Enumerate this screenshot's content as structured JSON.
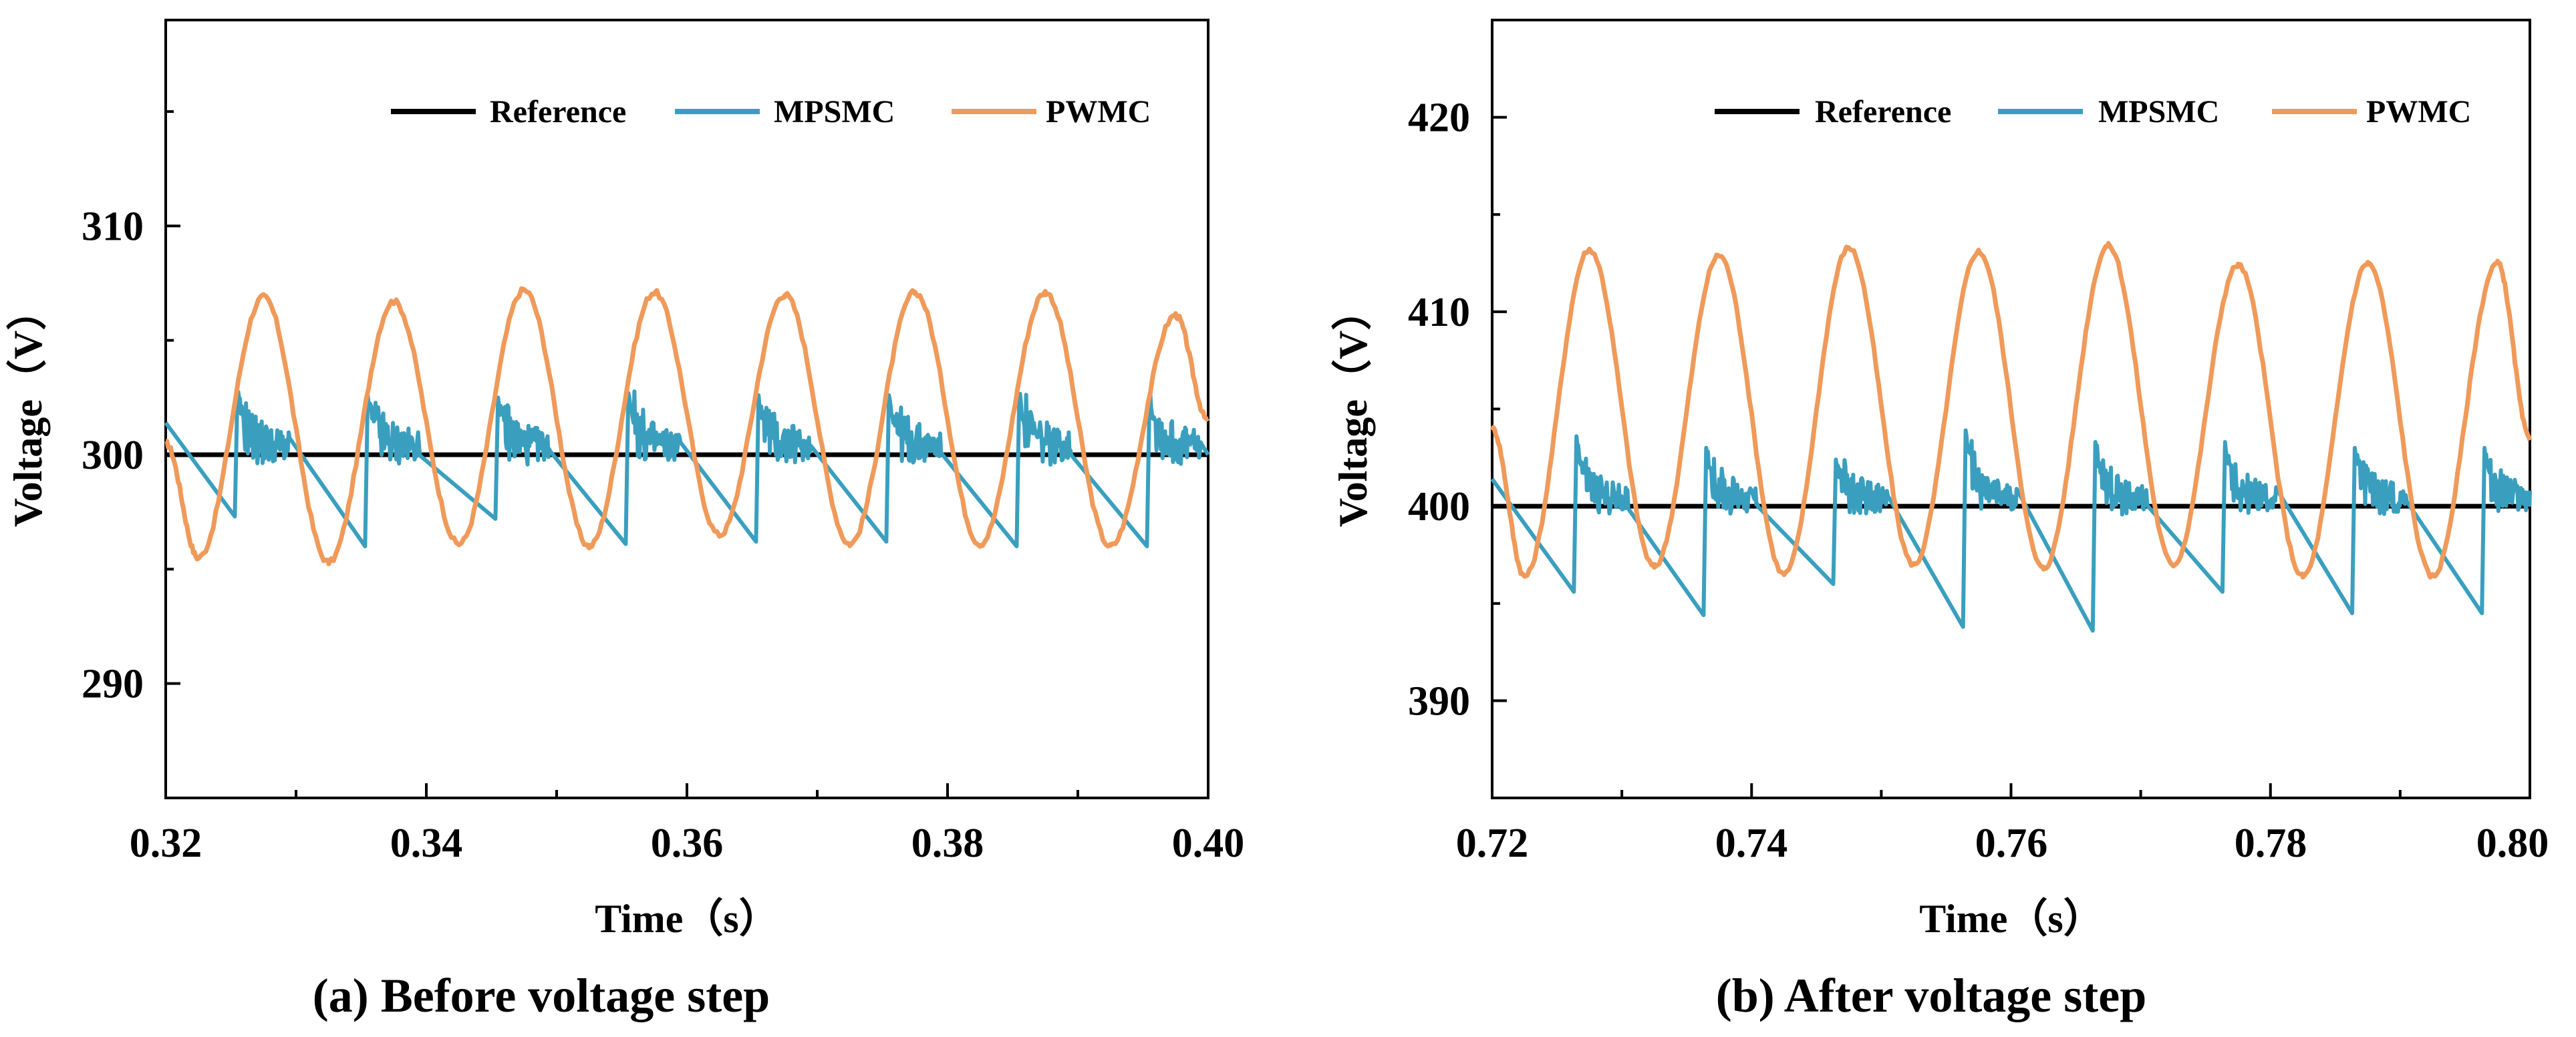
{
  "colors": {
    "reference": "#000000",
    "mpsmc": "#3a9fbf",
    "pwmc": "#ef9a5a"
  },
  "chart_data": [
    {
      "type": "line",
      "caption": "(a) Before voltage step",
      "xlabel": "Time（s）",
      "ylabel": "Voltage（V）",
      "xlim": [
        0.32,
        0.4
      ],
      "ylim": [
        285,
        319
      ],
      "xticks": [
        "0.32",
        "0.34",
        "0.36",
        "0.38",
        "0.40"
      ],
      "yticks": [
        "290",
        "300",
        "310"
      ],
      "legend": [
        "Reference",
        "MPSMC",
        "PWMC"
      ],
      "series": [
        {
          "name": "Reference",
          "type": "constant",
          "value": 300
        },
        {
          "name": "MPSMC",
          "type": "sawtooth",
          "period": 0.01,
          "start": 0.3255,
          "peaks": [
            302.7,
            302.6,
            302.5,
            302.7,
            302.6,
            302.6,
            302.5,
            302.6
          ],
          "troughs": [
            297.3,
            296.0,
            297.2,
            296.1,
            296.2,
            296.2,
            296.0,
            296.0
          ],
          "tail": 300.0
        },
        {
          "name": "PWMC",
          "type": "oscillation",
          "period": 0.01,
          "first_peak": 0.3275,
          "peaks": [
            306.9,
            306.7,
            307.2,
            307.1,
            307.0,
            307.1,
            307.1,
            306.1
          ],
          "troughs": [
            295.5,
            295.3,
            296.1,
            296.0,
            296.5,
            296.1,
            296.1,
            296.0
          ],
          "start": 300.5,
          "end": 301.5
        }
      ]
    },
    {
      "type": "line",
      "caption": "(b) After voltage step",
      "xlabel": "Time（s）",
      "ylabel": "Voltage（V）",
      "xlim": [
        0.72,
        0.8
      ],
      "ylim": [
        385,
        425
      ],
      "xticks": [
        "0.72",
        "0.74",
        "0.76",
        "0.78",
        "0.80"
      ],
      "yticks": [
        "390",
        "400",
        "410",
        "420"
      ],
      "legend": [
        "Reference",
        "MPSMC",
        "PWMC"
      ],
      "series": [
        {
          "name": "Reference",
          "type": "constant",
          "value": 400
        },
        {
          "name": "MPSMC",
          "type": "sawtooth",
          "period": 0.01,
          "start": 0.7265,
          "peaks": [
            403.6,
            403.0,
            402.4,
            403.9,
            403.3,
            403.3,
            403.0,
            403.0
          ],
          "troughs": [
            395.6,
            394.4,
            396.0,
            393.8,
            393.6,
            395.6,
            394.5,
            394.5
          ],
          "tail": 400.8
        },
        {
          "name": "PWMC",
          "type": "oscillation",
          "period": 0.01,
          "first_peak": 0.7275,
          "peaks": [
            413.2,
            412.9,
            413.3,
            413.1,
            413.4,
            412.4,
            412.5,
            412.5
          ],
          "troughs": [
            396.4,
            396.9,
            396.5,
            397.0,
            396.8,
            397.0,
            396.4,
            396.4
          ],
          "start": 404.0,
          "end": 403.5
        }
      ]
    }
  ]
}
